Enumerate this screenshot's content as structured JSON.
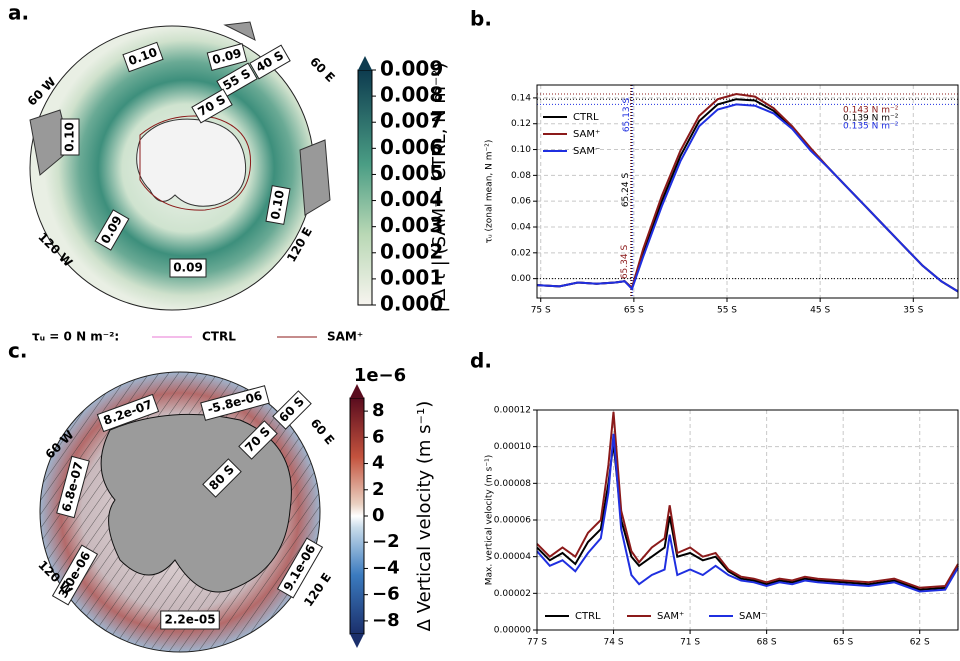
{
  "chart_data": [
    {
      "type": "map",
      "panel_label": "a.",
      "labels": [
        "0.10",
        "0.09",
        "40 S",
        "55 S",
        "70 S",
        "0.10",
        "0.10",
        "0.09",
        "0.09",
        "60 W",
        "60 E",
        "120 W",
        "120 E"
      ],
      "colorbar": {
        "label": "| Δ τ | (SAM⁺ - CTRL, N m⁻²)",
        "clim": [
          0,
          0.009
        ],
        "ticks": [
          {
            "value": 0,
            "label": "0.000"
          },
          {
            "value": 0.001,
            "label": "0.001"
          },
          {
            "value": 0.002,
            "label": "0.002"
          },
          {
            "value": 0.003,
            "label": "0.003"
          },
          {
            "value": 0.004,
            "label": "0.004"
          },
          {
            "value": 0.005,
            "label": "0.005"
          },
          {
            "value": 0.006,
            "label": "0.006"
          },
          {
            "value": 0.007,
            "label": "0.007"
          },
          {
            "value": 0.008,
            "label": "0.008"
          },
          {
            "value": 0.009,
            "label": "0.009"
          }
        ]
      },
      "legend_title": "τᵤ = 0  N m⁻²:",
      "legend": [
        {
          "name": "CTRL",
          "color": "#e879d6"
        },
        {
          "name": "SAM⁺",
          "color": "#8b1a1a"
        }
      ]
    },
    {
      "type": "line",
      "panel_label": "b.",
      "ylabel": "τᵤ (zonal mean, N m⁻²)",
      "grid": true,
      "legend": "upper left",
      "xlim": [
        -75.4,
        -30.2
      ],
      "ylim": [
        -0.015,
        0.15
      ],
      "xticks": [
        {
          "value": -75,
          "label": "75 S"
        },
        {
          "value": -65,
          "label": "65 S"
        },
        {
          "value": -55,
          "label": "55 S"
        },
        {
          "value": -45,
          "label": "45 S"
        },
        {
          "value": -35,
          "label": "35 S"
        }
      ],
      "yticks": [
        {
          "value": 0,
          "label": "0.00"
        },
        {
          "value": 0.02,
          "label": "0.02"
        },
        {
          "value": 0.04,
          "label": "0.04"
        },
        {
          "value": 0.06,
          "label": "0.06"
        },
        {
          "value": 0.08,
          "label": "0.08"
        },
        {
          "value": 0.1,
          "label": "0.10"
        },
        {
          "value": 0.12,
          "label": "0.12"
        },
        {
          "value": 0.14,
          "label": "0.14"
        }
      ],
      "x": [
        -75.4,
        -73,
        -71,
        -69,
        -67,
        -66,
        -65.2,
        -64,
        -62,
        -60,
        -58,
        -56,
        -54,
        -52,
        -50,
        -48,
        -46,
        -44,
        -42,
        -40,
        -38,
        -36,
        -34,
        -32,
        -30.2
      ],
      "series": [
        {
          "name": "CTRL",
          "color": "#000000",
          "values": [
            -0.005,
            -0.006,
            -0.003,
            -0.004,
            -0.003,
            -0.002,
            -0.007,
            0.02,
            0.06,
            0.095,
            0.122,
            0.135,
            0.139,
            0.138,
            0.13,
            0.117,
            0.1,
            0.085,
            0.07,
            0.055,
            0.04,
            0.025,
            0.01,
            -0.002,
            -0.01
          ]
        },
        {
          "name": "SAM⁺",
          "color": "#8b1a1a",
          "values": [
            -0.005,
            -0.006,
            -0.003,
            -0.004,
            -0.003,
            -0.002,
            -0.007,
            0.023,
            0.064,
            0.099,
            0.126,
            0.139,
            0.143,
            0.141,
            0.132,
            0.118,
            0.101,
            0.085,
            0.07,
            0.055,
            0.04,
            0.025,
            0.01,
            -0.002,
            -0.01
          ]
        },
        {
          "name": "SAM⁻",
          "color": "#1f2fe0",
          "values": [
            -0.005,
            -0.006,
            -0.003,
            -0.004,
            -0.003,
            -0.002,
            -0.008,
            0.017,
            0.056,
            0.091,
            0.118,
            0.131,
            0.135,
            0.134,
            0.128,
            0.116,
            0.099,
            0.085,
            0.07,
            0.055,
            0.04,
            0.025,
            0.01,
            -0.002,
            -0.01
          ]
        }
      ],
      "hlines": [
        {
          "value": 0.143,
          "color": "#8b1a1a",
          "label": "0.143 N m⁻²"
        },
        {
          "value": 0.139,
          "color": "#000000",
          "label": "0.139 N m⁻²"
        },
        {
          "value": 0.135,
          "color": "#1f2fe0",
          "label": "0.135 N m⁻²"
        }
      ],
      "vlines": [
        {
          "value": -65.13,
          "color": "#1f2fe0",
          "label": "65.13 S"
        },
        {
          "value": -65.24,
          "color": "#000000",
          "label": "65.24 S"
        },
        {
          "value": -65.34,
          "color": "#8b1a1a",
          "label": "65.34 S"
        }
      ]
    },
    {
      "type": "map",
      "panel_label": "c.",
      "labels": [
        "8.2e-07",
        "-5.8e-06",
        "60 S",
        "70 S",
        "80 S",
        "6.8e-07",
        "3.0e-06",
        "9.1e-06",
        "2.2e-05",
        "60 W",
        "60 E",
        "120 W",
        "120 E"
      ],
      "colorbar": {
        "label": "Δ Vertical velocity (m s⁻¹)",
        "offset": "1e−6",
        "clim": [
          -9,
          9
        ],
        "ticks": [
          {
            "value": -8,
            "label": "−8"
          },
          {
            "value": -6,
            "label": "−6"
          },
          {
            "value": -4,
            "label": "−4"
          },
          {
            "value": -2,
            "label": "−2"
          },
          0,
          2,
          4,
          6,
          8
        ]
      }
    },
    {
      "type": "line",
      "panel_label": "d.",
      "ylabel": "Max. vertical velocity (m s⁻¹)",
      "grid": true,
      "legend": "lower left",
      "xlim": [
        -77,
        -60.5
      ],
      "ylim": [
        0,
        0.00012
      ],
      "xticks": [
        {
          "value": -77,
          "label": "77 S"
        },
        {
          "value": -74,
          "label": "74 S"
        },
        {
          "value": -71,
          "label": "71 S"
        },
        {
          "value": -68,
          "label": "68 S"
        },
        {
          "value": -65,
          "label": "65 S"
        },
        {
          "value": -62,
          "label": "62 S"
        }
      ],
      "yticks": [
        {
          "value": 0,
          "label": "0.00000"
        },
        {
          "value": 2e-05,
          "label": "0.00002"
        },
        {
          "value": 4e-05,
          "label": "0.00004"
        },
        {
          "value": 6e-05,
          "label": "0.00006"
        },
        {
          "value": 8e-05,
          "label": "0.00008"
        },
        {
          "value": 0.0001,
          "label": "0.00010"
        },
        {
          "value": 0.00012,
          "label": "0.00012"
        }
      ],
      "x": [
        -77,
        -76.5,
        -76,
        -75.5,
        -75,
        -74.5,
        -74.2,
        -74,
        -73.7,
        -73.3,
        -73,
        -72.5,
        -72,
        -71.8,
        -71.5,
        -71,
        -70.5,
        -70,
        -69.5,
        -69,
        -68.5,
        -68,
        -67.5,
        -67,
        -66.5,
        -66,
        -65,
        -64,
        -63,
        -62,
        -61,
        -60.5
      ],
      "series": [
        {
          "name": "CTRL",
          "color": "#000000",
          "values": [
            4.5e-05,
            3.8e-05,
            4.2e-05,
            3.6e-05,
            4.8e-05,
            5.5e-05,
            8e-05,
            0.000102,
            6e-05,
            4e-05,
            3.5e-05,
            4e-05,
            4.5e-05,
            6.2e-05,
            4e-05,
            4.2e-05,
            3.8e-05,
            4e-05,
            3.2e-05,
            2.8e-05,
            2.7e-05,
            2.5e-05,
            2.7e-05,
            2.6e-05,
            2.8e-05,
            2.7e-05,
            2.6e-05,
            2.5e-05,
            2.7e-05,
            2.2e-05,
            2.3e-05,
            3.5e-05
          ]
        },
        {
          "name": "SAM⁺",
          "color": "#8b1a1a",
          "values": [
            4.7e-05,
            4e-05,
            4.5e-05,
            4e-05,
            5.3e-05,
            6e-05,
            9e-05,
            0.000119,
            6.5e-05,
            4.3e-05,
            3.7e-05,
            4.5e-05,
            5e-05,
            6.8e-05,
            4.2e-05,
            4.5e-05,
            4e-05,
            4.2e-05,
            3.3e-05,
            2.9e-05,
            2.8e-05,
            2.6e-05,
            2.8e-05,
            2.7e-05,
            2.9e-05,
            2.8e-05,
            2.7e-05,
            2.6e-05,
            2.8e-05,
            2.3e-05,
            2.4e-05,
            3.6e-05
          ]
        },
        {
          "name": "SAM⁻",
          "color": "#1f2fe0",
          "values": [
            4.3e-05,
            3.5e-05,
            3.8e-05,
            3.2e-05,
            4.2e-05,
            5e-05,
            7.5e-05,
            0.000107,
            5.5e-05,
            3e-05,
            2.5e-05,
            3e-05,
            3.3e-05,
            5.2e-05,
            3e-05,
            3.3e-05,
            3e-05,
            3.5e-05,
            3e-05,
            2.7e-05,
            2.6e-05,
            2.4e-05,
            2.6e-05,
            2.5e-05,
            2.7e-05,
            2.6e-05,
            2.5e-05,
            2.4e-05,
            2.6e-05,
            2.1e-05,
            2.2e-05,
            3.4e-05
          ]
        }
      ]
    }
  ]
}
